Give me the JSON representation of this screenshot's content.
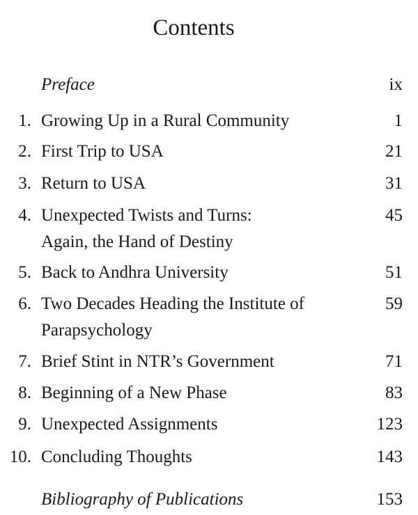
{
  "title": "Contents",
  "front": {
    "label": "Preface",
    "page": "ix"
  },
  "chapters": [
    {
      "num": "1.",
      "lines": [
        "Growing Up in a Rural Community"
      ],
      "page": "1"
    },
    {
      "num": "2.",
      "lines": [
        "First Trip to USA"
      ],
      "page": "21"
    },
    {
      "num": "3.",
      "lines": [
        "Return to USA"
      ],
      "page": "31"
    },
    {
      "num": "4.",
      "lines": [
        "Unexpected Twists and Turns:",
        "Again, the Hand of Destiny"
      ],
      "page": "45"
    },
    {
      "num": "5.",
      "lines": [
        "Back to Andhra University"
      ],
      "page": "51"
    },
    {
      "num": "6.",
      "lines": [
        "Two Decades Heading the Institute of",
        "Parapsychology"
      ],
      "page": "59"
    },
    {
      "num": "7.",
      "lines": [
        "Brief Stint in NTR’s Government"
      ],
      "page": "71"
    },
    {
      "num": "8.",
      "lines": [
        "Beginning of a New Phase"
      ],
      "page": "83"
    },
    {
      "num": "9.",
      "lines": [
        "Unexpected Assignments"
      ],
      "page": "123"
    },
    {
      "num": "10.",
      "lines": [
        "Concluding Thoughts"
      ],
      "page": "143"
    }
  ],
  "back": {
    "label": "Bibliography of Publications",
    "page": "153"
  }
}
